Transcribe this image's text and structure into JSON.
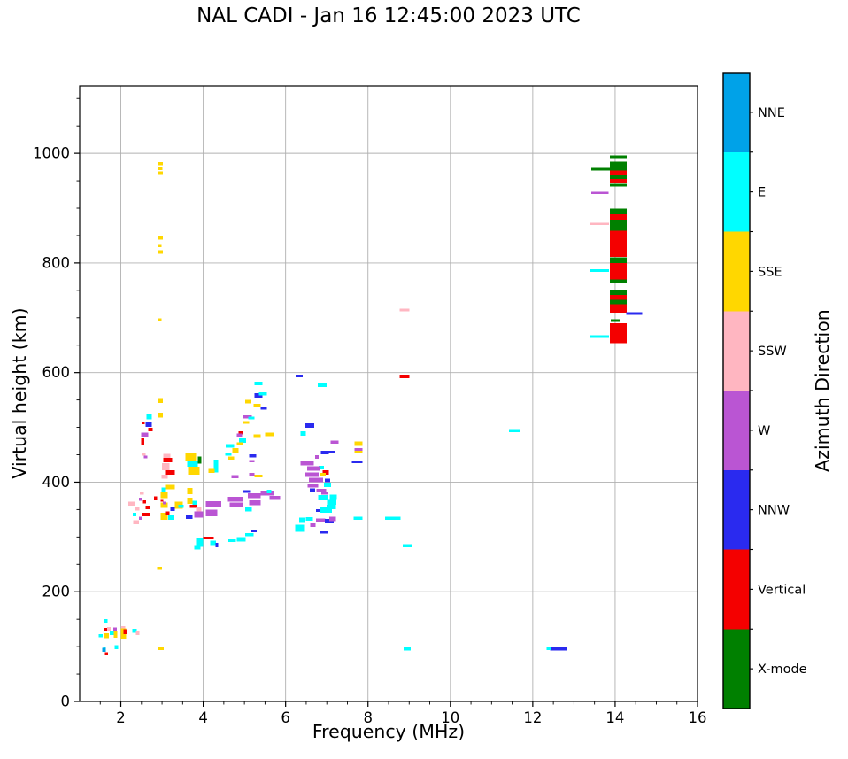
{
  "title": "NAL CADI - Jan 16 12:45:00 2023 UTC",
  "chart_data": {
    "type": "scatter",
    "title": "NAL CADI - Jan 16 12:45:00 2023 UTC",
    "xlabel": "Frequency (MHz)",
    "ylabel": "Virtual height (km)",
    "xlim": [
      1,
      16
    ],
    "ylim": [
      0,
      1123
    ],
    "xticks": [
      2,
      4,
      6,
      8,
      10,
      12,
      14,
      16
    ],
    "yticks": [
      0,
      200,
      400,
      600,
      800,
      1000
    ],
    "x_minor_step": 0.5,
    "y_minor_step": 50,
    "grid": true,
    "grid_color": "#b0b0b0",
    "colorbar": {
      "label": "Azimuth Direction",
      "categories": [
        {
          "key": "NNE",
          "label": "NNE",
          "color": "#00A2E8"
        },
        {
          "key": "E",
          "label": "E",
          "color": "#00FFFF"
        },
        {
          "key": "SSE",
          "label": "SSE",
          "color": "#FFD700"
        },
        {
          "key": "SSW",
          "label": "SSW",
          "color": "#FFB6C1"
        },
        {
          "key": "W",
          "label": "W",
          "color": "#BA55D3"
        },
        {
          "key": "NNW",
          "label": "NNW",
          "color": "#2A2AEF"
        },
        {
          "key": "V",
          "label": "Vertical",
          "color": "#F40000"
        },
        {
          "key": "X",
          "label": "X-mode",
          "color": "#008000"
        }
      ]
    },
    "points_format": [
      "freq_MHz",
      "virtual_height_km",
      "width_MHz",
      "height_span_km",
      "azimuth_key"
    ],
    "points": [
      [
        1.63,
        146,
        0.1,
        8,
        "E"
      ],
      [
        1.63,
        131,
        0.09,
        6,
        "V"
      ],
      [
        1.71,
        132,
        0.08,
        7,
        "SSW"
      ],
      [
        1.51,
        120,
        0.09,
        6,
        "E"
      ],
      [
        1.65,
        120,
        0.11,
        9,
        "SSE"
      ],
      [
        1.86,
        131,
        0.08,
        8,
        "W"
      ],
      [
        1.78,
        125,
        0.09,
        8,
        "E"
      ],
      [
        1.87,
        122,
        0.09,
        11,
        "SSE"
      ],
      [
        2.06,
        134,
        0.09,
        6,
        "SSW"
      ],
      [
        2.06,
        124,
        0.13,
        19,
        "SSE"
      ],
      [
        2.1,
        127,
        0.07,
        9,
        "V"
      ],
      [
        2.33,
        129,
        0.11,
        7,
        "E"
      ],
      [
        2.41,
        125,
        0.09,
        7,
        "SSW"
      ],
      [
        1.89,
        99,
        0.09,
        7,
        "E"
      ],
      [
        1.6,
        98,
        0.07,
        5,
        "E"
      ],
      [
        1.59,
        94,
        0.09,
        7,
        "NNE"
      ],
      [
        1.65,
        87,
        0.07,
        6,
        "V"
      ],
      [
        2.97,
        97,
        0.14,
        7,
        "SSE"
      ],
      [
        2.96,
        981,
        0.11,
        6,
        "SSE"
      ],
      [
        2.96,
        972,
        0.1,
        5,
        "SSE"
      ],
      [
        2.96,
        964,
        0.11,
        6,
        "SSE"
      ],
      [
        2.96,
        846,
        0.11,
        6,
        "SSE"
      ],
      [
        2.94,
        831,
        0.1,
        4,
        "SSE"
      ],
      [
        2.96,
        820,
        0.12,
        7,
        "SSE"
      ],
      [
        2.94,
        696,
        0.1,
        6,
        "SSE"
      ],
      [
        2.94,
        243,
        0.11,
        6,
        "SSE"
      ],
      [
        2.51,
        380,
        0.1,
        6,
        "SSW"
      ],
      [
        2.47,
        369,
        0.07,
        6,
        "W"
      ],
      [
        2.27,
        361,
        0.17,
        7,
        "SSW"
      ],
      [
        2.56,
        364,
        0.1,
        6,
        "V"
      ],
      [
        2.65,
        354,
        0.1,
        6,
        "V"
      ],
      [
        2.4,
        352,
        0.1,
        7,
        "SSW"
      ],
      [
        2.61,
        341,
        0.22,
        7,
        "V"
      ],
      [
        2.33,
        341,
        0.08,
        7,
        "E"
      ],
      [
        2.47,
        334,
        0.07,
        6,
        "W"
      ],
      [
        2.37,
        327,
        0.15,
        7,
        "SSW"
      ],
      [
        2.84,
        371,
        0.08,
        6,
        "V"
      ],
      [
        3.03,
        384,
        0.09,
        13,
        "E"
      ],
      [
        3.19,
        391,
        0.24,
        8,
        "SSE"
      ],
      [
        3.05,
        377,
        0.17,
        12,
        "SSE"
      ],
      [
        3.05,
        358,
        0.17,
        10,
        "SSE"
      ],
      [
        3.05,
        338,
        0.17,
        13,
        "SSE"
      ],
      [
        3.0,
        367,
        0.07,
        5,
        "V"
      ],
      [
        3.06,
        362,
        0.07,
        5,
        "W"
      ],
      [
        3.26,
        351,
        0.11,
        7,
        "NNW"
      ],
      [
        3.13,
        343,
        0.11,
        7,
        "V"
      ],
      [
        3.22,
        335,
        0.15,
        8,
        "E"
      ],
      [
        3.41,
        358,
        0.19,
        13,
        "SSE"
      ],
      [
        3.46,
        356,
        0.13,
        6,
        "E"
      ],
      [
        3.68,
        384,
        0.13,
        11,
        "SSE"
      ],
      [
        3.68,
        366,
        0.13,
        11,
        "SSE"
      ],
      [
        3.8,
        362,
        0.11,
        8,
        "E"
      ],
      [
        3.76,
        356,
        0.17,
        6,
        "V"
      ],
      [
        3.89,
        351,
        0.13,
        9,
        "SSW"
      ],
      [
        3.66,
        337,
        0.17,
        8,
        "NNW"
      ],
      [
        3.89,
        341,
        0.21,
        11,
        "W"
      ],
      [
        4.25,
        360,
        0.37,
        11,
        "W"
      ],
      [
        4.2,
        344,
        0.28,
        12,
        "W"
      ],
      [
        4.78,
        369,
        0.37,
        9,
        "W"
      ],
      [
        4.8,
        358,
        0.32,
        9,
        "W"
      ],
      [
        5.1,
        351,
        0.17,
        9,
        "E"
      ],
      [
        5.24,
        375,
        0.32,
        9,
        "W"
      ],
      [
        5.26,
        363,
        0.28,
        10,
        "W"
      ],
      [
        5.05,
        383,
        0.17,
        5,
        "NNW"
      ],
      [
        5.56,
        380,
        0.32,
        9,
        "W"
      ],
      [
        5.6,
        383,
        0.11,
        6,
        "E"
      ],
      [
        5.74,
        372,
        0.26,
        6,
        "W"
      ],
      [
        4.13,
        298,
        0.26,
        5,
        "V"
      ],
      [
        3.91,
        290,
        0.17,
        16,
        "E"
      ],
      [
        3.86,
        281,
        0.15,
        8,
        "E"
      ],
      [
        4.24,
        289,
        0.13,
        8,
        "E"
      ],
      [
        4.33,
        285,
        0.07,
        8,
        "NNW"
      ],
      [
        4.7,
        293,
        0.19,
        5,
        "E"
      ],
      [
        4.92,
        296,
        0.21,
        8,
        "E"
      ],
      [
        5.12,
        304,
        0.21,
        6,
        "E"
      ],
      [
        5.22,
        311,
        0.15,
        5,
        "NNW"
      ],
      [
        5.34,
        580,
        0.19,
        6,
        "E"
      ],
      [
        5.34,
        558,
        0.19,
        8,
        "NNW"
      ],
      [
        5.45,
        561,
        0.19,
        6,
        "E"
      ],
      [
        5.08,
        547,
        0.13,
        6,
        "SSE"
      ],
      [
        5.31,
        540,
        0.17,
        6,
        "SSE"
      ],
      [
        5.47,
        535,
        0.15,
        5,
        "NNW"
      ],
      [
        5.08,
        519,
        0.21,
        6,
        "W"
      ],
      [
        5.17,
        517,
        0.15,
        5,
        "E"
      ],
      [
        5.04,
        509,
        0.15,
        5,
        "SSE"
      ],
      [
        4.91,
        490,
        0.11,
        5,
        "V"
      ],
      [
        4.88,
        486,
        0.13,
        6,
        "W"
      ],
      [
        4.95,
        476,
        0.17,
        8,
        "E"
      ],
      [
        4.89,
        470,
        0.15,
        5,
        "SSE"
      ],
      [
        5.31,
        485,
        0.17,
        5,
        "SSE"
      ],
      [
        5.61,
        487,
        0.21,
        6,
        "SSE"
      ],
      [
        4.65,
        466,
        0.21,
        6,
        "E"
      ],
      [
        4.78,
        458,
        0.15,
        8,
        "SSE"
      ],
      [
        4.61,
        451,
        0.15,
        5,
        "E"
      ],
      [
        4.68,
        444,
        0.15,
        5,
        "SSE"
      ],
      [
        5.2,
        448,
        0.17,
        5,
        "NNW"
      ],
      [
        5.18,
        438,
        0.13,
        4,
        "W"
      ],
      [
        4.77,
        410,
        0.17,
        5,
        "W"
      ],
      [
        5.18,
        414,
        0.13,
        5,
        "W"
      ],
      [
        5.34,
        411,
        0.19,
        5,
        "SSE"
      ],
      [
        2.96,
        549,
        0.11,
        9,
        "SSE"
      ],
      [
        2.96,
        522,
        0.11,
        9,
        "SSE"
      ],
      [
        2.69,
        519,
        0.13,
        9,
        "E"
      ],
      [
        2.54,
        508,
        0.08,
        5,
        "V"
      ],
      [
        2.68,
        505,
        0.15,
        8,
        "NNW"
      ],
      [
        2.58,
        487,
        0.17,
        7,
        "W"
      ],
      [
        2.53,
        474,
        0.07,
        11,
        "V"
      ],
      [
        2.55,
        451,
        0.1,
        5,
        "SSW"
      ],
      [
        2.6,
        446,
        0.08,
        5,
        "W"
      ],
      [
        2.72,
        496,
        0.1,
        6,
        "V"
      ],
      [
        3.12,
        448,
        0.17,
        8,
        "SSW"
      ],
      [
        3.14,
        440,
        0.21,
        8,
        "V"
      ],
      [
        3.09,
        428,
        0.19,
        13,
        "SSW"
      ],
      [
        3.19,
        418,
        0.23,
        8,
        "V"
      ],
      [
        3.06,
        410,
        0.15,
        8,
        "SSW"
      ],
      [
        3.7,
        446,
        0.26,
        13,
        "SSE"
      ],
      [
        3.74,
        434,
        0.26,
        11,
        "E"
      ],
      [
        3.77,
        421,
        0.28,
        14,
        "SSE"
      ],
      [
        3.91,
        440,
        0.09,
        13,
        "X"
      ],
      [
        4.31,
        435,
        0.11,
        13,
        "E"
      ],
      [
        4.31,
        423,
        0.11,
        11,
        "E"
      ],
      [
        4.2,
        421,
        0.15,
        9,
        "SSE"
      ],
      [
        6.33,
        594,
        0.17,
        5,
        "NNW"
      ],
      [
        6.89,
        577,
        0.22,
        6,
        "E"
      ],
      [
        6.58,
        503,
        0.22,
        8,
        "NNW"
      ],
      [
        6.43,
        489,
        0.13,
        8,
        "E"
      ],
      [
        7.19,
        473,
        0.19,
        6,
        "W"
      ],
      [
        7.77,
        470,
        0.19,
        8,
        "SSE"
      ],
      [
        7.77,
        460,
        0.19,
        5,
        "W"
      ],
      [
        7.77,
        455,
        0.19,
        5,
        "SSE"
      ],
      [
        7.12,
        455,
        0.19,
        5,
        "NNW"
      ],
      [
        7.74,
        437,
        0.26,
        5,
        "NNW"
      ],
      [
        6.95,
        454,
        0.19,
        6,
        "NNW"
      ],
      [
        6.76,
        446,
        0.09,
        6,
        "W"
      ],
      [
        6.52,
        435,
        0.32,
        8,
        "W"
      ],
      [
        6.87,
        427,
        0.13,
        6,
        "E"
      ],
      [
        6.68,
        425,
        0.32,
        8,
        "W"
      ],
      [
        6.97,
        418,
        0.15,
        8,
        "V"
      ],
      [
        6.91,
        414,
        0.13,
        6,
        "SSE"
      ],
      [
        6.64,
        414,
        0.32,
        8,
        "W"
      ],
      [
        6.74,
        404,
        0.34,
        8,
        "W"
      ],
      [
        7.02,
        403,
        0.13,
        6,
        "NNW"
      ],
      [
        6.66,
        394,
        0.26,
        7,
        "W"
      ],
      [
        7.02,
        395,
        0.17,
        8,
        "E"
      ],
      [
        6.87,
        385,
        0.24,
        6,
        "W"
      ],
      [
        6.65,
        386,
        0.13,
        6,
        "NNW"
      ],
      [
        6.95,
        380,
        0.17,
        5,
        "W"
      ],
      [
        6.91,
        372,
        0.24,
        9,
        "E"
      ],
      [
        7.12,
        364,
        0.22,
        10,
        "E"
      ],
      [
        7.16,
        373,
        0.17,
        8,
        "E"
      ],
      [
        7.11,
        355,
        0.22,
        8,
        "E"
      ],
      [
        6.85,
        348,
        0.22,
        5,
        "NNW"
      ],
      [
        6.98,
        350,
        0.28,
        11,
        "E"
      ],
      [
        6.58,
        333,
        0.17,
        6,
        "E"
      ],
      [
        6.85,
        331,
        0.22,
        6,
        "W"
      ],
      [
        7.06,
        329,
        0.22,
        8,
        "NNW"
      ],
      [
        7.14,
        333,
        0.17,
        8,
        "W"
      ],
      [
        6.4,
        331,
        0.15,
        8,
        "E"
      ],
      [
        6.34,
        316,
        0.22,
        13,
        "E"
      ],
      [
        6.66,
        322,
        0.13,
        8,
        "W"
      ],
      [
        6.94,
        309,
        0.19,
        5,
        "NNW"
      ],
      [
        7.76,
        334,
        0.22,
        6,
        "E"
      ],
      [
        8.6,
        334,
        0.37,
        6,
        "E"
      ],
      [
        8.89,
        714,
        0.24,
        5,
        "SSW"
      ],
      [
        8.89,
        593,
        0.24,
        6,
        "V"
      ],
      [
        8.95,
        284,
        0.21,
        6,
        "E"
      ],
      [
        8.95,
        96,
        0.17,
        6,
        "E"
      ],
      [
        11.56,
        494,
        0.28,
        6,
        "E"
      ],
      [
        12.62,
        96,
        0.39,
        6,
        "NNW"
      ],
      [
        12.39,
        96,
        0.1,
        5,
        "E"
      ],
      [
        14.08,
        994,
        0.41,
        5,
        "X"
      ],
      [
        14.08,
        977,
        0.41,
        16,
        "X"
      ],
      [
        14.08,
        964,
        0.41,
        9,
        "V"
      ],
      [
        14.08,
        956,
        0.41,
        7,
        "X"
      ],
      [
        14.08,
        949,
        0.41,
        8,
        "V"
      ],
      [
        14.08,
        942,
        0.41,
        5,
        "X"
      ],
      [
        13.66,
        971,
        0.47,
        5,
        "X"
      ],
      [
        13.63,
        928,
        0.41,
        4,
        "W"
      ],
      [
        14.08,
        894,
        0.41,
        11,
        "X"
      ],
      [
        14.08,
        884,
        0.41,
        10,
        "V"
      ],
      [
        14.08,
        869,
        0.41,
        20,
        "X"
      ],
      [
        13.63,
        871,
        0.45,
        4,
        "SSW"
      ],
      [
        14.08,
        835,
        0.41,
        48,
        "V"
      ],
      [
        14.08,
        805,
        0.41,
        11,
        "X"
      ],
      [
        14.08,
        785,
        0.41,
        30,
        "V"
      ],
      [
        13.63,
        786,
        0.45,
        5,
        "E"
      ],
      [
        14.08,
        767,
        0.41,
        6,
        "X"
      ],
      [
        14.08,
        746,
        0.41,
        8,
        "X"
      ],
      [
        14.08,
        737,
        0.41,
        9,
        "V"
      ],
      [
        14.08,
        729,
        0.41,
        8,
        "X"
      ],
      [
        14.08,
        717,
        0.41,
        16,
        "V"
      ],
      [
        14.46,
        708,
        0.39,
        5,
        "NNW"
      ],
      [
        14.0,
        695,
        0.22,
        5,
        "X"
      ],
      [
        14.08,
        672,
        0.41,
        36,
        "V"
      ],
      [
        13.63,
        666,
        0.45,
        5,
        "E"
      ]
    ]
  }
}
